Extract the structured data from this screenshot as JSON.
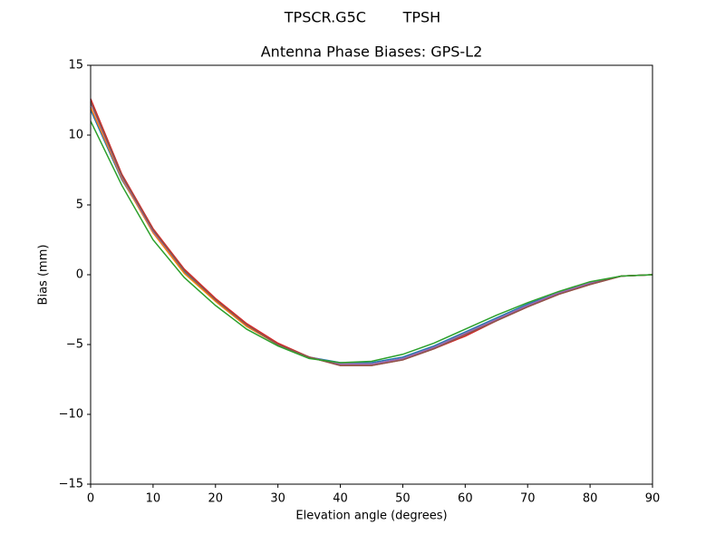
{
  "chart_data": {
    "type": "line",
    "suptitle": "TPSCR.G5C        TPSH",
    "title": "Antenna Phase Biases: GPS-L2",
    "x_label": "Elevation angle (degrees)",
    "y_label": "Bias (mm)",
    "x": [
      0,
      5,
      10,
      15,
      20,
      25,
      30,
      35,
      40,
      45,
      50,
      55,
      60,
      65,
      70,
      75,
      80,
      85,
      90
    ],
    "series": [
      {
        "color": "#1f77b4",
        "values": [
          11.8,
          6.8,
          3.2,
          0.2,
          -1.9,
          -3.7,
          -5.0,
          -5.9,
          -6.3,
          -6.3,
          -5.9,
          -5.1,
          -4.1,
          -3.1,
          -2.1,
          -1.3,
          -0.6,
          -0.1,
          0.0
        ]
      },
      {
        "color": "#ff7f0e",
        "values": [
          12.0,
          6.9,
          3.0,
          0.1,
          -1.9,
          -3.7,
          -5.0,
          -5.9,
          -6.4,
          -6.4,
          -6.0,
          -5.2,
          -4.2,
          -3.2,
          -2.2,
          -1.3,
          -0.6,
          -0.1,
          0.0
        ]
      },
      {
        "color": "#9467bd",
        "values": [
          12.3,
          7.0,
          3.1,
          0.3,
          -1.8,
          -3.6,
          -5.0,
          -5.9,
          -6.4,
          -6.4,
          -6.0,
          -5.2,
          -4.2,
          -3.2,
          -2.2,
          -1.3,
          -0.6,
          -0.1,
          0.0
        ]
      },
      {
        "color": "#d62728",
        "values": [
          12.6,
          7.2,
          3.3,
          0.4,
          -1.7,
          -3.5,
          -4.9,
          -5.9,
          -6.5,
          -6.5,
          -6.1,
          -5.3,
          -4.4,
          -3.3,
          -2.3,
          -1.4,
          -0.7,
          -0.1,
          0.0
        ]
      },
      {
        "color": "#8c564b",
        "values": [
          12.4,
          7.1,
          3.2,
          0.3,
          -1.8,
          -3.6,
          -5.0,
          -5.9,
          -6.5,
          -6.5,
          -6.1,
          -5.3,
          -4.3,
          -3.3,
          -2.3,
          -1.4,
          -0.7,
          -0.1,
          0.0
        ]
      },
      {
        "color": "#2ca02c",
        "values": [
          11.0,
          6.4,
          2.5,
          -0.2,
          -2.2,
          -3.9,
          -5.1,
          -6.0,
          -6.3,
          -6.2,
          -5.7,
          -4.9,
          -3.9,
          -2.9,
          -2.0,
          -1.2,
          -0.5,
          -0.1,
          0.0
        ]
      }
    ],
    "xlim": [
      0,
      90
    ],
    "ylim": [
      -15,
      15
    ],
    "xticks": [
      0,
      10,
      20,
      30,
      40,
      50,
      60,
      70,
      80,
      90
    ],
    "yticks": [
      {
        "value": -15,
        "label": "−15"
      },
      {
        "value": -10,
        "label": "−10"
      },
      {
        "value": -5,
        "label": "−5"
      },
      0,
      5,
      10,
      15
    ],
    "grid": false
  }
}
